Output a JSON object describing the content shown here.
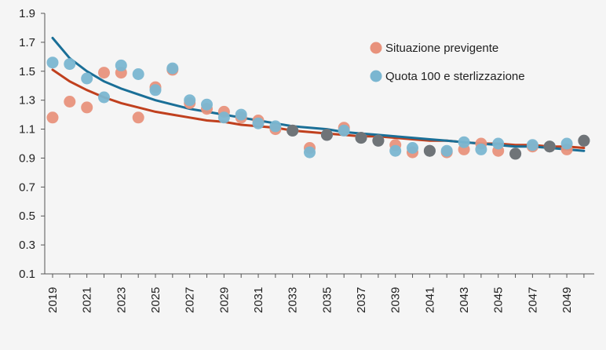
{
  "chart_data": {
    "type": "scatter",
    "title": "",
    "xlabel": "",
    "ylabel": "",
    "x": [
      2019,
      2020,
      2021,
      2022,
      2023,
      2024,
      2025,
      2026,
      2027,
      2028,
      2029,
      2030,
      2031,
      2032,
      2033,
      2034,
      2035,
      2036,
      2037,
      2038,
      2039,
      2040,
      2041,
      2042,
      2043,
      2044,
      2045,
      2046,
      2047,
      2048,
      2049,
      2050
    ],
    "xlim": [
      2019,
      2050.6
    ],
    "ylim": [
      0.1,
      1.9
    ],
    "yticks": [
      "0.1",
      "0.3",
      "0.5",
      "0.7",
      "0.9",
      "1.1",
      "1.3",
      "1.5",
      "1.7",
      "1.9"
    ],
    "xticks": [
      "2019",
      "2021",
      "2023",
      "2025",
      "2027",
      "2029",
      "2031",
      "2033",
      "2035",
      "2037",
      "2039",
      "2041",
      "2043",
      "2045",
      "2047",
      "2049"
    ],
    "grid": false,
    "legend_position": "top-right",
    "colors": {
      "background": "#f5f5f5",
      "axis": "#555555",
      "overlap": "#6f7478"
    },
    "series": [
      {
        "name": "Situazione previgente",
        "color": "#e8927c",
        "trend_color": "#c0401e",
        "values": [
          1.18,
          1.29,
          1.25,
          1.49,
          1.49,
          1.18,
          1.39,
          1.51,
          1.28,
          1.24,
          1.22,
          1.18,
          1.16,
          1.1,
          1.09,
          0.97,
          1.06,
          1.11,
          1.04,
          1.02,
          0.99,
          0.94,
          0.95,
          0.94,
          0.96,
          1.0,
          0.95,
          0.93,
          0.98,
          0.98,
          0.96,
          1.02
        ],
        "trend": [
          1.51,
          1.43,
          1.37,
          1.32,
          1.28,
          1.25,
          1.22,
          1.2,
          1.18,
          1.16,
          1.15,
          1.13,
          1.12,
          1.11,
          1.09,
          1.08,
          1.07,
          1.06,
          1.05,
          1.05,
          1.04,
          1.03,
          1.02,
          1.02,
          1.01,
          1.0,
          1.0,
          0.99,
          0.99,
          0.98,
          0.98,
          0.97
        ]
      },
      {
        "name": "Quota 100 e sterlizzazione",
        "color": "#7ab6d1",
        "trend_color": "#1a6f97",
        "values": [
          1.56,
          1.55,
          1.45,
          1.32,
          1.54,
          1.48,
          1.37,
          1.52,
          1.3,
          1.27,
          1.18,
          1.2,
          1.14,
          1.12,
          1.09,
          0.94,
          1.06,
          1.09,
          1.04,
          1.02,
          0.95,
          0.97,
          0.95,
          0.95,
          1.01,
          0.96,
          1.0,
          0.93,
          0.99,
          0.98,
          1.0,
          1.02
        ],
        "trend": [
          1.73,
          1.59,
          1.5,
          1.43,
          1.38,
          1.34,
          1.3,
          1.27,
          1.24,
          1.22,
          1.2,
          1.18,
          1.16,
          1.14,
          1.12,
          1.11,
          1.1,
          1.08,
          1.07,
          1.06,
          1.05,
          1.04,
          1.03,
          1.02,
          1.01,
          1.0,
          0.99,
          0.98,
          0.98,
          0.97,
          0.96,
          0.95
        ]
      }
    ]
  }
}
